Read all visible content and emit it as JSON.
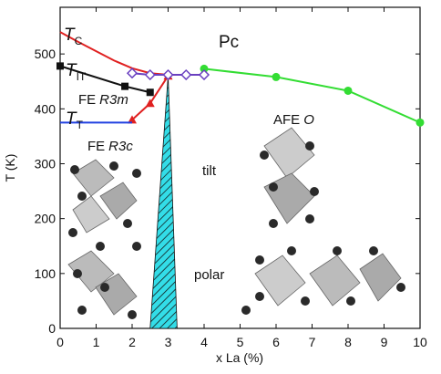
{
  "chart_data": {
    "type": "line",
    "xlabel": "x La (%)",
    "ylabel": "T (K)",
    "xlim": [
      0,
      10
    ],
    "xticks": [
      0,
      1,
      2,
      3,
      4,
      5,
      6,
      7,
      8,
      9,
      10
    ],
    "ylim": [
      0,
      585
    ],
    "yticks": [
      0,
      100,
      200,
      300,
      400,
      500
    ],
    "grid": false,
    "annotations": [
      {
        "text": "Pc"
      },
      {
        "text": "T",
        "sub": "C"
      },
      {
        "text": "T",
        "sub": "IT"
      },
      {
        "text": "FE",
        "italic": "R3m"
      },
      {
        "text": "T",
        "sub": "T"
      },
      {
        "text": "FE",
        "italic": "R3c"
      },
      {
        "text": "AFE",
        "italic": "O"
      },
      {
        "text": "tilt"
      },
      {
        "text": "polar"
      }
    ],
    "regions": [
      {
        "color": "#33dde8",
        "x": [
          2.5,
          3,
          3.25
        ],
        "values": [
          0,
          460,
          0
        ]
      }
    ],
    "series": [
      {
        "color": "#e02020",
        "marker": "none",
        "x": [
          0,
          0.5,
          1,
          1.5,
          2,
          2.5,
          3,
          3.5,
          4
        ],
        "values": [
          540,
          522,
          505,
          488,
          474,
          465,
          462,
          462,
          462
        ]
      },
      {
        "color": "#111111",
        "marker": "square",
        "x": [
          0,
          1.8,
          2.5
        ],
        "values": [
          478,
          441,
          430
        ]
      },
      {
        "color": "#e02020",
        "marker": "triangle",
        "x": [
          2,
          2.5,
          3
        ],
        "values": [
          380,
          410,
          460
        ]
      },
      {
        "color": "#2040e0",
        "marker": "none",
        "x": [
          0,
          1,
          2
        ],
        "values": [
          375,
          375,
          375
        ]
      },
      {
        "color": "#33dd33",
        "marker": "circle",
        "x": [
          4,
          6,
          8,
          10
        ],
        "values": [
          473,
          458,
          433,
          375
        ]
      },
      {
        "color": "#6a40c0",
        "marker": "diamond",
        "x": [
          2,
          2.5,
          3,
          3.5,
          4
        ],
        "values": [
          465,
          462,
          462,
          462,
          462
        ]
      }
    ]
  }
}
